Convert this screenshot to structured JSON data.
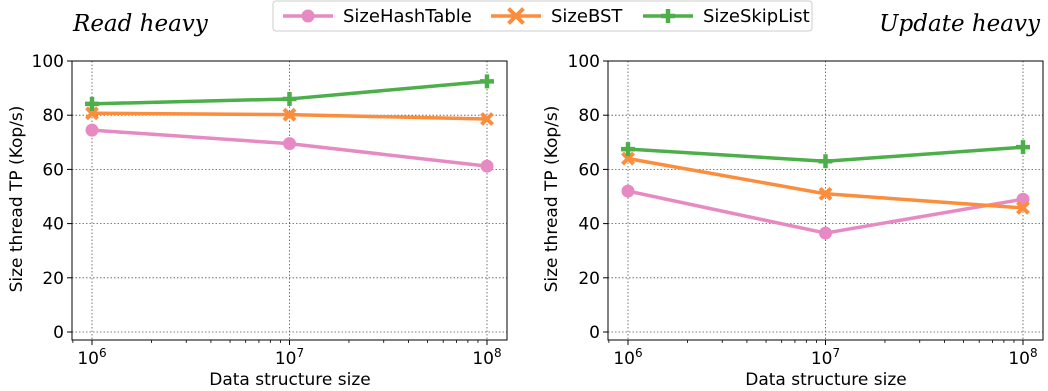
{
  "legend": {
    "items": [
      {
        "label": "SizeHashTable",
        "color": "#e78ac3",
        "marker": "circle"
      },
      {
        "label": "SizeBST",
        "color": "#fc8d3c",
        "marker": "x"
      },
      {
        "label": "SizeSkipList",
        "color": "#4daf4a",
        "marker": "plus"
      }
    ]
  },
  "chart_data": [
    {
      "type": "line",
      "title": "Read heavy",
      "xlabel": "Data structure size",
      "ylabel": "Size thread TP (Kop/s)",
      "x": [
        1000000,
        10000000,
        100000000
      ],
      "x_scale": "log",
      "x_tick_labels": [
        {
          "base": "10",
          "exp": "6"
        },
        {
          "base": "10",
          "exp": "7"
        },
        {
          "base": "10",
          "exp": "8"
        }
      ],
      "ylim": [
        0,
        100
      ],
      "yticks": [
        "0",
        "20",
        "40",
        "60",
        "80",
        "100"
      ],
      "grid": true,
      "series": [
        {
          "name": "SizeHashTable",
          "values": [
            74.5,
            69.5,
            61.2
          ]
        },
        {
          "name": "SizeBST",
          "values": [
            80.7,
            80.2,
            78.6
          ]
        },
        {
          "name": "SizeSkipList",
          "values": [
            84.2,
            86.0,
            92.5
          ]
        }
      ]
    },
    {
      "type": "line",
      "title": "Update heavy",
      "xlabel": "Data structure size",
      "ylabel": "Size thread TP (Kop/s)",
      "x": [
        1000000,
        10000000,
        100000000
      ],
      "x_scale": "log",
      "x_tick_labels": [
        {
          "base": "10",
          "exp": "6"
        },
        {
          "base": "10",
          "exp": "7"
        },
        {
          "base": "10",
          "exp": "8"
        }
      ],
      "ylim": [
        0,
        100
      ],
      "yticks": [
        "0",
        "20",
        "40",
        "60",
        "80",
        "100"
      ],
      "grid": true,
      "series": [
        {
          "name": "SizeHashTable",
          "values": [
            52.0,
            36.5,
            49.0
          ]
        },
        {
          "name": "SizeBST",
          "values": [
            64.0,
            51.0,
            45.8
          ]
        },
        {
          "name": "SizeSkipList",
          "values": [
            67.5,
            63.0,
            68.2
          ]
        }
      ]
    }
  ]
}
